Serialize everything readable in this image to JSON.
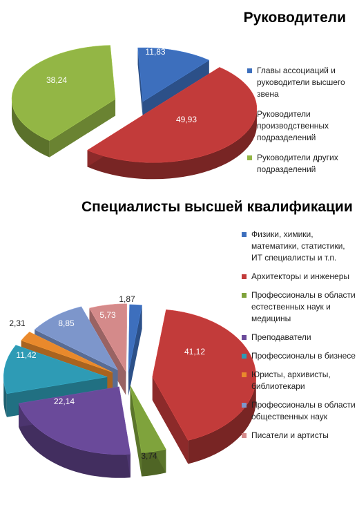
{
  "chart_data": [
    {
      "type": "pie",
      "title": "Руководители",
      "legend_position": "right",
      "series": [
        {
          "name": "Главы ассоциаций и руководители высшего звена",
          "value": 11.83,
          "label": "11,83",
          "color": "#3d6fbd"
        },
        {
          "name": "Руководители производственных подразделений",
          "value": 49.93,
          "label": "49,93",
          "color": "#c23b3a"
        },
        {
          "name": "Руководители других подразделений",
          "value": 38.24,
          "label": "38,24",
          "color": "#93b645"
        }
      ]
    },
    {
      "type": "pie",
      "title": "Специалисты высшей квалификации",
      "legend_position": "right",
      "series": [
        {
          "name": "Физики, химики, математики, статистики, ИТ специалисты и т.п.",
          "value": 1.87,
          "label": "1,87",
          "color": "#3d6fbd"
        },
        {
          "name": "Архитекторы и инженеры",
          "value": 41.12,
          "label": "41,12",
          "color": "#c23b3a"
        },
        {
          "name": "Профессионалы в области естественных наук и медицины",
          "value": 3.74,
          "label": "3,74",
          "color": "#7fa33c"
        },
        {
          "name": "Преподаватели",
          "value": 22.14,
          "label": "22,14",
          "color": "#6a4a9a"
        },
        {
          "name": "Профессионалы в бизнесе",
          "value": 11.42,
          "label": "11,42",
          "color": "#2e9bb5"
        },
        {
          "name": "Юристы, архивисты, библиотекари",
          "value": 2.31,
          "label": "2,31",
          "color": "#e9892c"
        },
        {
          "name": "Профессионалы в области общественных наук",
          "value": 8.85,
          "label": "8,85",
          "color": "#7d96cb"
        },
        {
          "name": "Писатели и артисты",
          "value": 5.73,
          "label": "5,73",
          "color": "#d48a8a"
        }
      ]
    }
  ]
}
